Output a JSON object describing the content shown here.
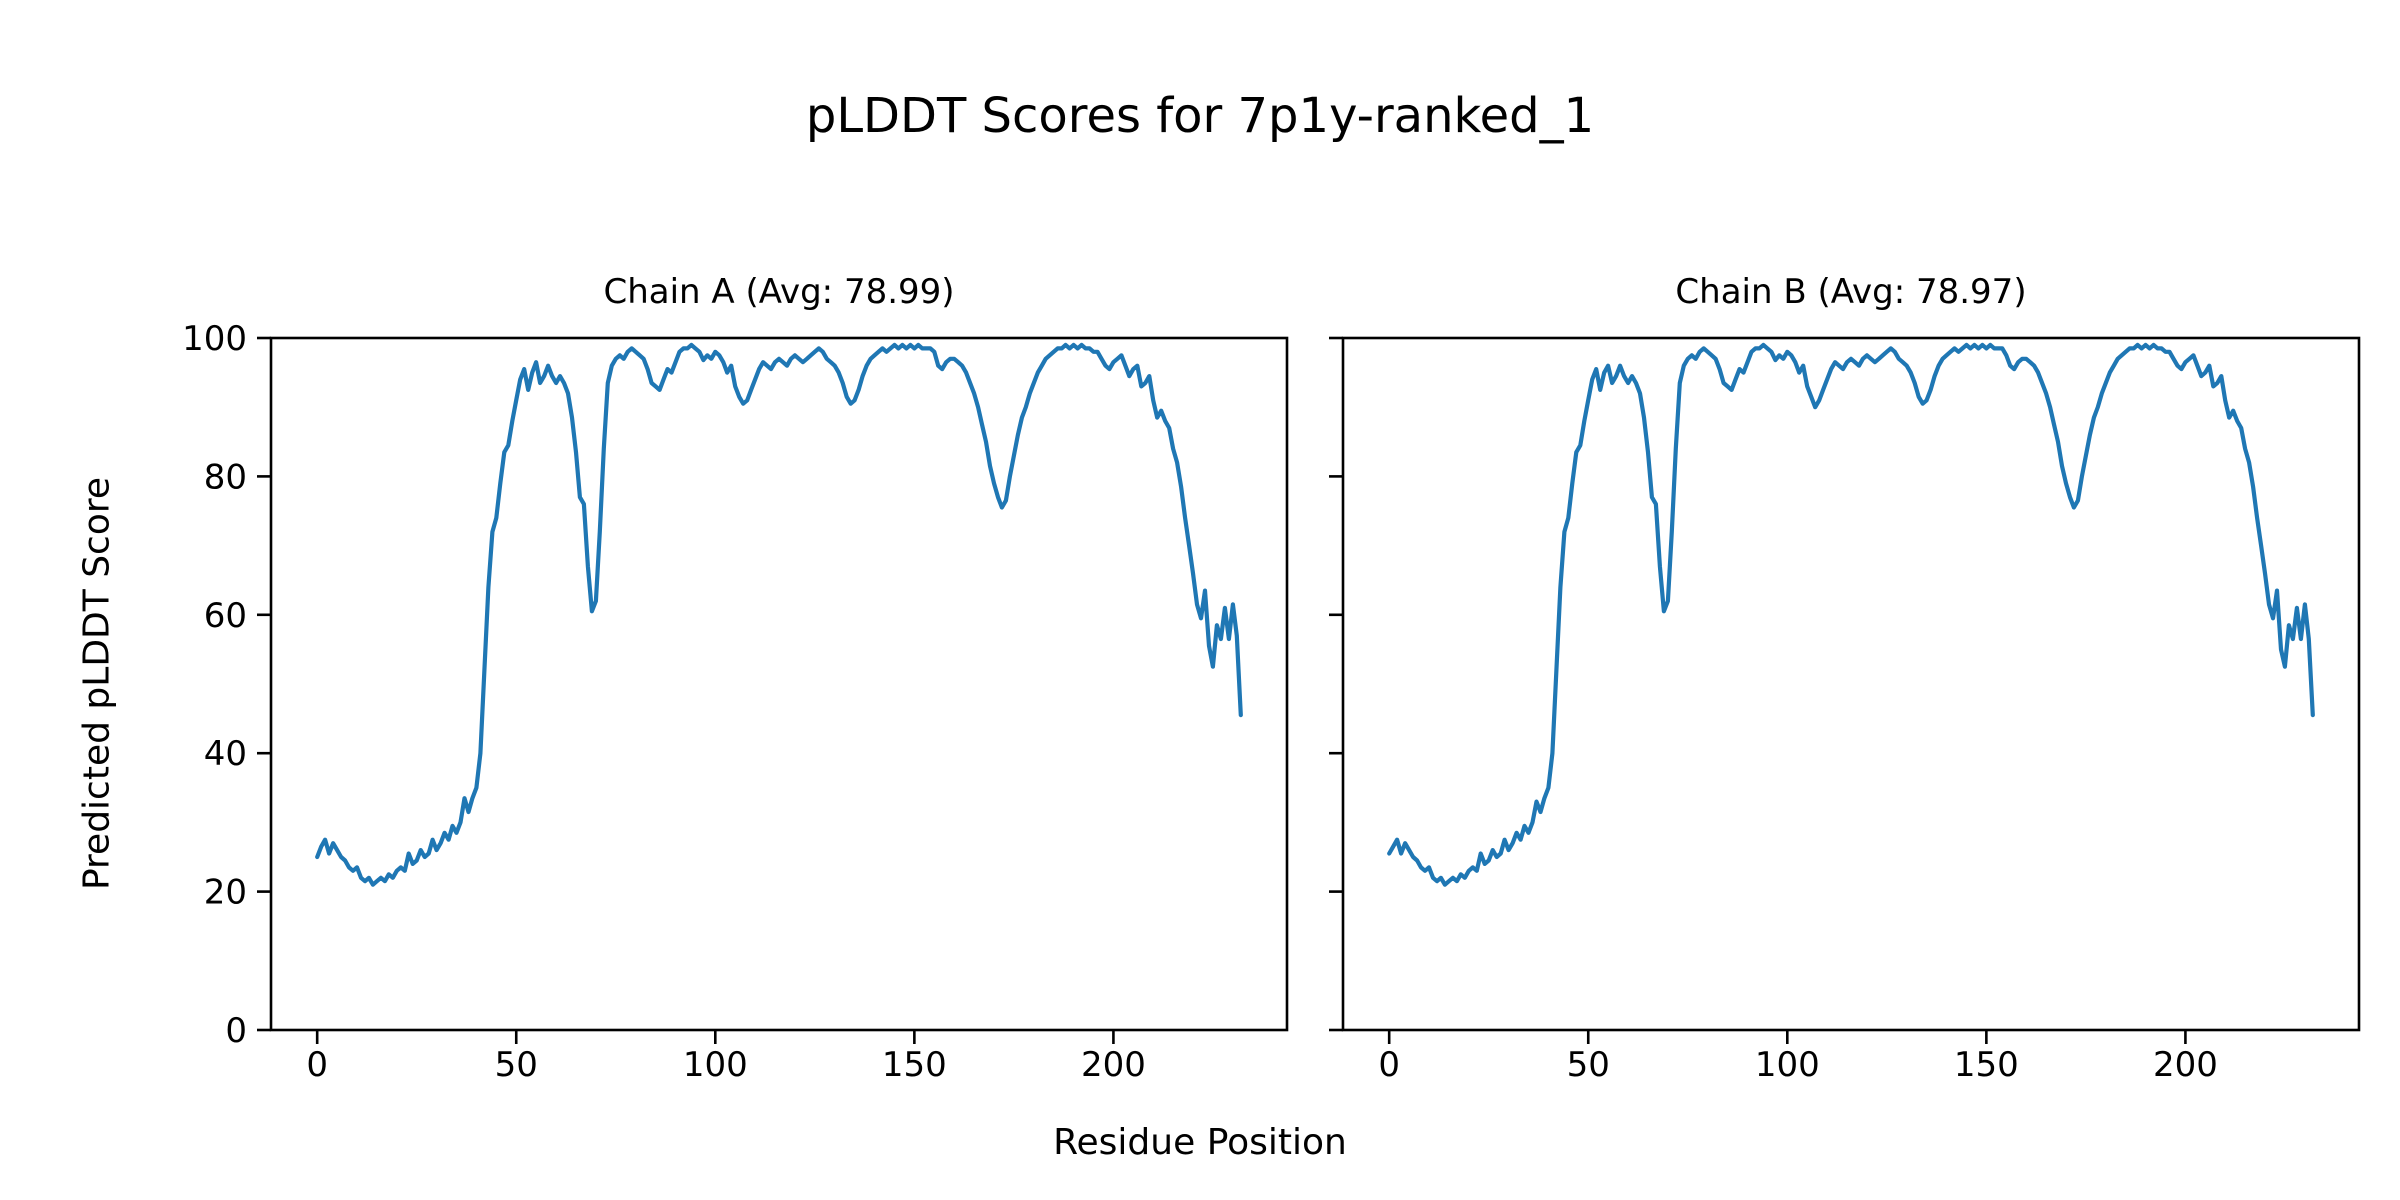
{
  "figure": {
    "title": "pLDDT Scores for 7p1y-ranked_1",
    "xlabel": "Residue Position",
    "ylabel": "Predicted pLDDT Score",
    "background_color": "#ffffff",
    "text_color": "#000000",
    "axes_color": "#000000"
  },
  "chart_data": [
    {
      "type": "line",
      "title": "Chain A (Avg: 78.99)",
      "series_name": "Chain A",
      "average": 78.99,
      "line_color": "#1f77b4",
      "x_start": 0,
      "x_ticks": [
        0,
        50,
        100,
        150,
        200
      ],
      "y_ticks": [
        0,
        20,
        40,
        60,
        80,
        100
      ],
      "xlim": [
        -11.6,
        243.6
      ],
      "ylim": [
        0,
        100
      ],
      "grid": false,
      "legend": "none",
      "show_y_tick_labels": true,
      "values": [
        25,
        26.5,
        27.5,
        25.5,
        27,
        26,
        25,
        24.5,
        23.5,
        23,
        23.5,
        22,
        21.5,
        22,
        21,
        21.5,
        22,
        21.5,
        22.5,
        22,
        23,
        23.5,
        23,
        25.5,
        24,
        24.5,
        26,
        25,
        25.5,
        27.5,
        26,
        27,
        28.5,
        27.5,
        29.5,
        28.5,
        30,
        33.5,
        31.5,
        33.5,
        35,
        40,
        52,
        64,
        72,
        74,
        79,
        83.5,
        84.5,
        88,
        91,
        94,
        95.5,
        92.5,
        95,
        96.5,
        93.5,
        94.5,
        96,
        94.5,
        93.5,
        94.5,
        93.5,
        92,
        88.5,
        83.5,
        77,
        76,
        67,
        60.5,
        62,
        72,
        84,
        93.5,
        96,
        97,
        97.5,
        97,
        98,
        98.5,
        98,
        97.5,
        97,
        95.5,
        93.5,
        93,
        92.5,
        94,
        95.5,
        95,
        96.5,
        98,
        98.5,
        98.5,
        99,
        98.5,
        98,
        96.8,
        97.5,
        97,
        98,
        97.5,
        96.5,
        95,
        96,
        93,
        91.5,
        90.5,
        91,
        92.5,
        94,
        95.5,
        96.5,
        96,
        95.5,
        96.5,
        97,
        96.5,
        96,
        97,
        97.5,
        97,
        96.5,
        97,
        97.5,
        98,
        98.5,
        98,
        97,
        96.5,
        96,
        95,
        93.5,
        91.5,
        90.5,
        91,
        92.5,
        94.5,
        96,
        97,
        97.5,
        98,
        98.5,
        98,
        98.5,
        99,
        98.5,
        99,
        98.5,
        99,
        98.5,
        99,
        98.5,
        98.5,
        98.5,
        98,
        96,
        95.5,
        96.5,
        97,
        97,
        96.5,
        96,
        95,
        93.5,
        92,
        90,
        87.5,
        85,
        81.5,
        79,
        77,
        75.5,
        76.5,
        80,
        83,
        86,
        88.5,
        90,
        92,
        93.5,
        95,
        96,
        97,
        97.5,
        98,
        98.5,
        98.5,
        99,
        98.5,
        99,
        98.5,
        99,
        98.5,
        98.5,
        98,
        98,
        97,
        96,
        95.5,
        96.5,
        97,
        97.5,
        96,
        94.5,
        95.5,
        96,
        93,
        93.5,
        94.5,
        91,
        88.5,
        89.5,
        88,
        87,
        84,
        82,
        78.5,
        74,
        70,
        66,
        61.5,
        59.5,
        63.5,
        55.5,
        52.5,
        58.5,
        56.5,
        61,
        56.5,
        61.5,
        57,
        45.5
      ]
    },
    {
      "type": "line",
      "title": "Chain B (Avg: 78.97)",
      "series_name": "Chain B",
      "average": 78.97,
      "line_color": "#1f77b4",
      "x_start": 0,
      "x_ticks": [
        0,
        50,
        100,
        150,
        200
      ],
      "y_ticks": [
        0,
        20,
        40,
        60,
        80,
        100
      ],
      "xlim": [
        -11.6,
        243.6
      ],
      "ylim": [
        0,
        100
      ],
      "grid": false,
      "legend": "none",
      "show_y_tick_labels": false,
      "values": [
        25.5,
        26.5,
        27.5,
        25.5,
        27,
        26,
        25,
        24.5,
        23.5,
        23,
        23.5,
        22,
        21.5,
        22,
        21,
        21.5,
        22,
        21.5,
        22.5,
        22,
        23,
        23.5,
        23,
        25.5,
        24,
        24.5,
        26,
        25,
        25.5,
        27.5,
        26,
        27,
        28.5,
        27.5,
        29.5,
        28.5,
        30,
        33,
        31.5,
        33.5,
        35,
        40,
        52,
        64,
        72,
        74,
        79,
        83.5,
        84.5,
        88,
        91,
        94,
        95.5,
        92.5,
        95,
        96,
        93.5,
        94.5,
        96,
        94.5,
        93.5,
        94.5,
        93.5,
        92,
        88.5,
        83.5,
        77,
        76,
        67,
        60.5,
        62,
        72,
        84,
        93.5,
        96,
        97,
        97.5,
        97,
        98,
        98.5,
        98,
        97.5,
        97,
        95.5,
        93.5,
        93,
        92.5,
        94,
        95.5,
        95,
        96.5,
        98,
        98.5,
        98.5,
        99,
        98.5,
        98,
        96.8,
        97.5,
        97,
        98,
        97.5,
        96.5,
        95,
        96,
        93,
        91.5,
        90,
        91,
        92.5,
        94,
        95.5,
        96.5,
        96,
        95.5,
        96.5,
        97,
        96.5,
        96,
        97,
        97.5,
        97,
        96.5,
        97,
        97.5,
        98,
        98.5,
        98,
        97,
        96.5,
        96,
        95,
        93.5,
        91.5,
        90.5,
        91,
        92.5,
        94.5,
        96,
        97,
        97.5,
        98,
        98.5,
        98,
        98.5,
        99,
        98.5,
        99,
        98.5,
        99,
        98.5,
        99,
        98.5,
        98.5,
        98.5,
        97.5,
        96,
        95.5,
        96.5,
        97,
        97,
        96.5,
        96,
        95,
        93.5,
        92,
        90,
        87.5,
        85,
        81.5,
        79,
        77,
        75.5,
        76.5,
        80,
        83,
        86,
        88.5,
        90,
        92,
        93.5,
        95,
        96,
        97,
        97.5,
        98,
        98.5,
        98.5,
        99,
        98.5,
        99,
        98.5,
        99,
        98.5,
        98.5,
        98,
        98,
        97,
        96,
        95.5,
        96.5,
        97,
        97.5,
        96,
        94.5,
        95,
        96,
        93,
        93.5,
        94.5,
        91,
        88.5,
        89.5,
        88,
        87,
        84,
        82,
        78.5,
        74,
        70,
        66,
        61.5,
        59.5,
        63.5,
        55,
        52.5,
        58.5,
        56.5,
        61,
        56.5,
        61.5,
        56.5,
        45.5
      ]
    }
  ]
}
